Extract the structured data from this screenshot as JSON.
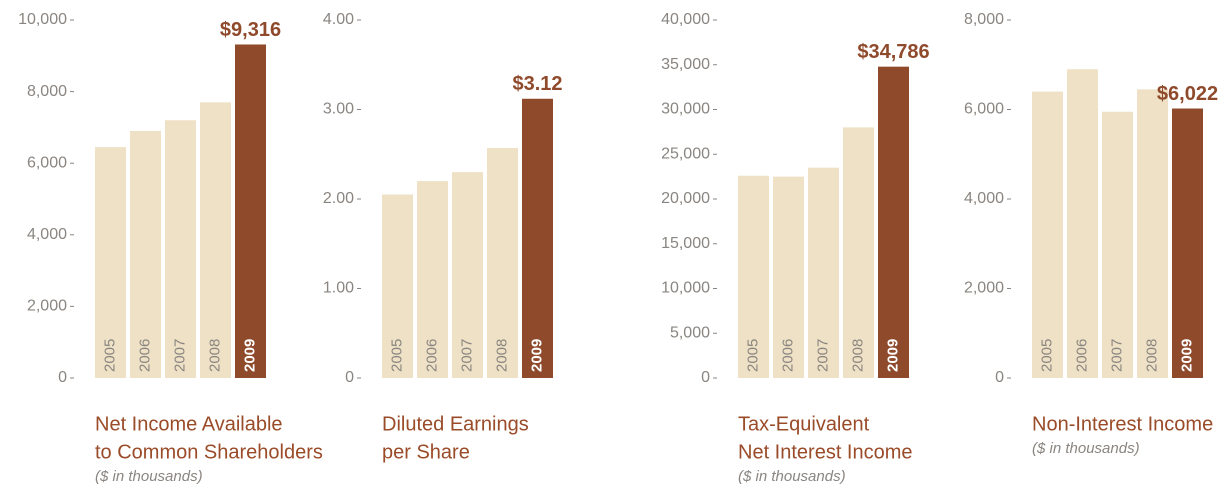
{
  "chart_data": [
    {
      "type": "bar",
      "title": [
        "Net Income Available",
        "to Common Shareholders"
      ],
      "subtitle": "($ in thousands)",
      "categories": [
        "2005",
        "2006",
        "2007",
        "2008",
        "2009"
      ],
      "values": [
        6450,
        6900,
        7200,
        7700,
        9316
      ],
      "value_labels": [
        null,
        null,
        null,
        null,
        "$9,316"
      ],
      "colors": [
        "#eee1c5",
        "#eee1c5",
        "#eee1c5",
        "#eee1c5",
        "#8f4a2c"
      ],
      "ylim": [
        0,
        10000
      ],
      "yticks": [
        0,
        {
          "value": 2000,
          "label": "2,000"
        },
        {
          "value": 4000,
          "label": "4,000"
        },
        {
          "value": 6000,
          "label": "6,000"
        },
        {
          "value": 8000,
          "label": "8,000"
        },
        {
          "value": 10000,
          "label": "10,000"
        }
      ]
    },
    {
      "type": "bar",
      "title": [
        "Diluted Earnings",
        "per Share"
      ],
      "categories": [
        "2005",
        "2006",
        "2007",
        "2008",
        "2009"
      ],
      "values": [
        2.05,
        2.2,
        2.3,
        2.57,
        3.12
      ],
      "value_labels": [
        null,
        null,
        null,
        null,
        "$3.12"
      ],
      "colors": [
        "#eee1c5",
        "#eee1c5",
        "#eee1c5",
        "#eee1c5",
        "#8f4a2c"
      ],
      "ylim": [
        0,
        4
      ],
      "yticks": [
        0,
        {
          "value": 1,
          "label": "1.00"
        },
        {
          "value": 2,
          "label": "2.00"
        },
        {
          "value": 3,
          "label": "3.00"
        },
        {
          "value": 4,
          "label": "4.00"
        }
      ]
    },
    {
      "type": "bar",
      "title": [
        "Tax-Equivalent",
        "Net Interest Income"
      ],
      "subtitle": "($ in thousands)",
      "categories": [
        "2005",
        "2006",
        "2007",
        "2008",
        "2009"
      ],
      "values": [
        22600,
        22500,
        23500,
        28000,
        34786
      ],
      "value_labels": [
        null,
        null,
        null,
        null,
        "$34,786"
      ],
      "colors": [
        "#eee1c5",
        "#eee1c5",
        "#eee1c5",
        "#eee1c5",
        "#8f4a2c"
      ],
      "ylim": [
        0,
        40000
      ],
      "yticks": [
        0,
        {
          "value": 5000,
          "label": "5,000"
        },
        {
          "value": 10000,
          "label": "10,000"
        },
        {
          "value": 15000,
          "label": "15,000"
        },
        {
          "value": 20000,
          "label": "20,000"
        },
        {
          "value": 25000,
          "label": "25,000"
        },
        {
          "value": 30000,
          "label": "30,000"
        },
        {
          "value": 35000,
          "label": "35,000"
        },
        {
          "value": 40000,
          "label": "40,000"
        }
      ]
    },
    {
      "type": "bar",
      "title": [
        "Non-Interest Income"
      ],
      "subtitle": "($ in thousands)",
      "categories": [
        "2005",
        "2006",
        "2007",
        "2008",
        "2009"
      ],
      "values": [
        6400,
        6900,
        5950,
        6450,
        6022
      ],
      "value_labels": [
        null,
        null,
        null,
        null,
        "$6,022"
      ],
      "colors": [
        "#eee1c5",
        "#eee1c5",
        "#eee1c5",
        "#eee1c5",
        "#8f4a2c"
      ],
      "ylim": [
        0,
        8000
      ],
      "yticks": [
        0,
        {
          "value": 2000,
          "label": "2,000"
        },
        {
          "value": 4000,
          "label": "4,000"
        },
        {
          "value": 6000,
          "label": "6,000"
        },
        {
          "value": 8000,
          "label": "8,000"
        }
      ]
    }
  ]
}
